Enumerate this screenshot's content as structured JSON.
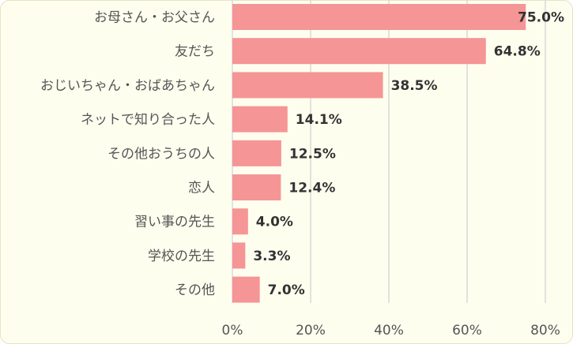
{
  "chart_data": {
    "type": "bar",
    "orientation": "horizontal",
    "categories": [
      "お母さん・お父さん",
      "友だち",
      "おじいちゃん・おばあちゃん",
      "ネットで知り合った人",
      "その他おうちの人",
      "恋人",
      "習い事の先生",
      "学校の先生",
      "その他"
    ],
    "values": [
      75.0,
      64.8,
      38.5,
      14.1,
      12.5,
      12.4,
      4.0,
      3.3,
      7.0
    ],
    "value_labels": [
      "75.0%",
      "64.8%",
      "38.5%",
      "14.1%",
      "12.5%",
      "12.4%",
      "4.0%",
      "3.3%",
      "7.0%"
    ],
    "xlim": [
      0,
      80
    ],
    "x_ticks": [
      0,
      20,
      40,
      60,
      80
    ],
    "x_tick_labels": [
      "0%",
      "20%",
      "40%",
      "60%",
      "80%"
    ],
    "grid": "vertical",
    "colors": {
      "bar": "#f59595",
      "grid": "#d9d9d9",
      "background": "#fefeef"
    }
  }
}
